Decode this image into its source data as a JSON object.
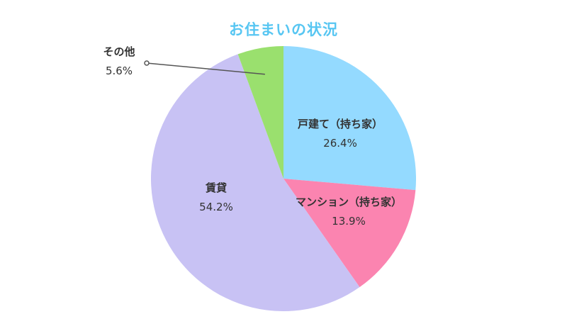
{
  "chart_data": {
    "type": "pie",
    "title": "お住まいの状況",
    "slices": [
      {
        "label": "戸建て（持ち家）",
        "value": 26.4,
        "display": "26.4%",
        "color": "#94daff"
      },
      {
        "label": "マンション（持ち家）",
        "value": 13.9,
        "display": "13.9%",
        "color": "#fb84b0"
      },
      {
        "label": "賃貸",
        "value": 54.2,
        "display": "54.2%",
        "color": "#c8c2f4"
      },
      {
        "label": "その他",
        "value": 5.6,
        "display": "5.6%",
        "color": "#9ae06e"
      }
    ],
    "start": "12 o'clock",
    "direction": "clockwise"
  }
}
